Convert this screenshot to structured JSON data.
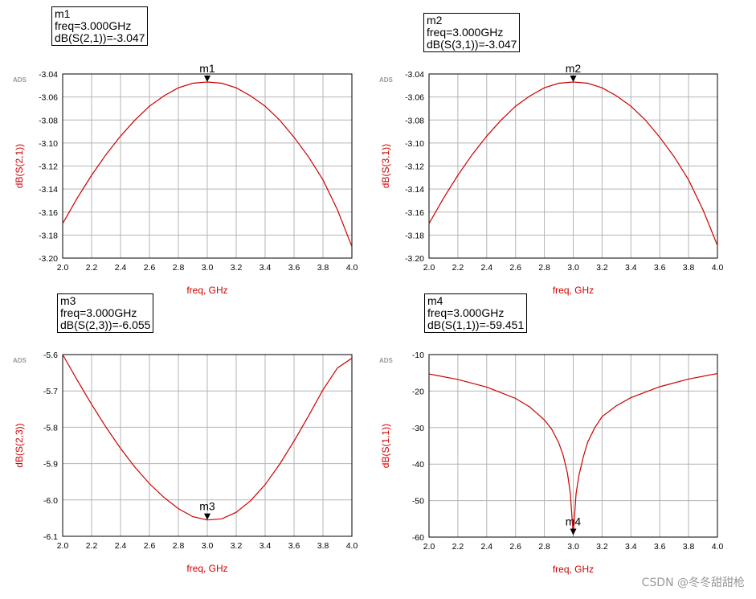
{
  "chart_data": [
    {
      "type": "line",
      "xlabel": "freq, GHz",
      "ylabel": "dB(S(2,1))",
      "xlim": [
        2.0,
        4.0
      ],
      "ylim": [
        -3.2,
        -3.04
      ],
      "xticks": [
        "2.0",
        "2.2",
        "2.4",
        "2.6",
        "2.8",
        "3.0",
        "3.2",
        "3.4",
        "3.6",
        "3.8",
        "4.0"
      ],
      "yticks": [
        "-3.04",
        "-3.06",
        "-3.08",
        "-3.10",
        "-3.12",
        "-3.14",
        "-3.16",
        "-3.18",
        "-3.20"
      ],
      "grid": true,
      "logo": "ADS",
      "series_color": "#cc0000",
      "x": [
        2.0,
        2.1,
        2.2,
        2.3,
        2.4,
        2.5,
        2.6,
        2.7,
        2.8,
        2.9,
        3.0,
        3.1,
        3.2,
        3.3,
        3.4,
        3.5,
        3.6,
        3.7,
        3.8,
        3.9,
        4.0
      ],
      "y": [
        -3.17,
        -3.148,
        -3.128,
        -3.11,
        -3.094,
        -3.08,
        -3.068,
        -3.059,
        -3.052,
        -3.048,
        -3.047,
        -3.048,
        -3.052,
        -3.059,
        -3.068,
        -3.08,
        -3.095,
        -3.112,
        -3.132,
        -3.158,
        -3.19
      ],
      "marker": {
        "name": "m1",
        "x": 3.0,
        "y": -3.047,
        "freq_text": "freq=3.000GHz",
        "value_text": "dB(S(2,1))=-3.047",
        "label_position": "above"
      }
    },
    {
      "type": "line",
      "xlabel": "freq, GHz",
      "ylabel": "dB(S(3,1))",
      "xlim": [
        2.0,
        4.0
      ],
      "ylim": [
        -3.2,
        -3.04
      ],
      "xticks": [
        "2.0",
        "2.2",
        "2.4",
        "2.6",
        "2.8",
        "3.0",
        "3.2",
        "3.4",
        "3.6",
        "3.8",
        "4.0"
      ],
      "yticks": [
        "-3.04",
        "-3.06",
        "-3.08",
        "-3.10",
        "-3.12",
        "-3.14",
        "-3.16",
        "-3.18",
        "-3.20"
      ],
      "grid": true,
      "logo": "ADS",
      "series_color": "#cc0000",
      "x": [
        2.0,
        2.1,
        2.2,
        2.3,
        2.4,
        2.5,
        2.6,
        2.7,
        2.8,
        2.9,
        3.0,
        3.1,
        3.2,
        3.3,
        3.4,
        3.5,
        3.6,
        3.7,
        3.8,
        3.9,
        4.0
      ],
      "y": [
        -3.17,
        -3.148,
        -3.128,
        -3.11,
        -3.094,
        -3.08,
        -3.068,
        -3.059,
        -3.052,
        -3.048,
        -3.047,
        -3.048,
        -3.052,
        -3.059,
        -3.068,
        -3.08,
        -3.095,
        -3.112,
        -3.132,
        -3.158,
        -3.189
      ],
      "marker": {
        "name": "m2",
        "x": 3.0,
        "y": -3.047,
        "freq_text": "freq=3.000GHz",
        "value_text": "dB(S(3,1))=-3.047",
        "label_position": "above"
      }
    },
    {
      "type": "line",
      "xlabel": "freq, GHz",
      "ylabel": "dB(S(2,3))",
      "xlim": [
        2.0,
        4.0
      ],
      "ylim": [
        -6.1,
        -5.6
      ],
      "xticks": [
        "2.0",
        "2.2",
        "2.4",
        "2.6",
        "2.8",
        "3.0",
        "3.2",
        "3.4",
        "3.6",
        "3.8",
        "4.0"
      ],
      "yticks": [
        "-5.6",
        "-5.7",
        "-5.8",
        "-5.9",
        "-6.0",
        "-6.1"
      ],
      "grid": true,
      "logo": "ADS",
      "series_color": "#cc0000",
      "x": [
        2.0,
        2.1,
        2.2,
        2.3,
        2.4,
        2.5,
        2.6,
        2.7,
        2.8,
        2.9,
        3.0,
        3.1,
        3.2,
        3.3,
        3.4,
        3.5,
        3.6,
        3.7,
        3.8,
        3.9,
        4.0
      ],
      "y": [
        -5.6,
        -5.67,
        -5.737,
        -5.8,
        -5.858,
        -5.91,
        -5.955,
        -5.993,
        -6.024,
        -6.046,
        -6.055,
        -6.052,
        -6.034,
        -6.002,
        -5.958,
        -5.902,
        -5.838,
        -5.769,
        -5.697,
        -5.637,
        -5.61
      ],
      "marker": {
        "name": "m3",
        "x": 3.0,
        "y": -6.055,
        "freq_text": "freq=3.000GHz",
        "value_text": "dB(S(2,3))=-6.055",
        "label_position": "above"
      }
    },
    {
      "type": "line",
      "xlabel": "freq, GHz",
      "ylabel": "dB(S(1,1))",
      "xlim": [
        2.0,
        4.0
      ],
      "ylim": [
        -60,
        -10
      ],
      "xticks": [
        "2.0",
        "2.2",
        "2.4",
        "2.6",
        "2.8",
        "3.0",
        "3.2",
        "3.4",
        "3.6",
        "3.8",
        "4.0"
      ],
      "yticks": [
        "-10",
        "-20",
        "-30",
        "-40",
        "-50",
        "-60"
      ],
      "grid": true,
      "logo": "ADS",
      "series_color": "#cc0000",
      "x": [
        2.0,
        2.2,
        2.4,
        2.6,
        2.7,
        2.8,
        2.85,
        2.9,
        2.93,
        2.96,
        2.98,
        3.0,
        3.02,
        3.04,
        3.07,
        3.1,
        3.15,
        3.2,
        3.3,
        3.4,
        3.6,
        3.8,
        4.0
      ],
      "y": [
        -15.3,
        -16.8,
        -18.9,
        -22.0,
        -24.4,
        -27.9,
        -30.4,
        -34.2,
        -37.5,
        -42.5,
        -48.0,
        -59.451,
        -48.0,
        -43.0,
        -38.0,
        -34.0,
        -30.0,
        -27.0,
        -24.0,
        -21.8,
        -18.8,
        -16.7,
        -15.2
      ],
      "marker": {
        "name": "m4",
        "x": 3.0,
        "y": -59.451,
        "freq_text": "freq=3.000GHz",
        "value_text": "dB(S(1,1))=-59.451",
        "label_position": "below"
      }
    }
  ],
  "watermark": "CSDN @冬冬甜甜枪"
}
